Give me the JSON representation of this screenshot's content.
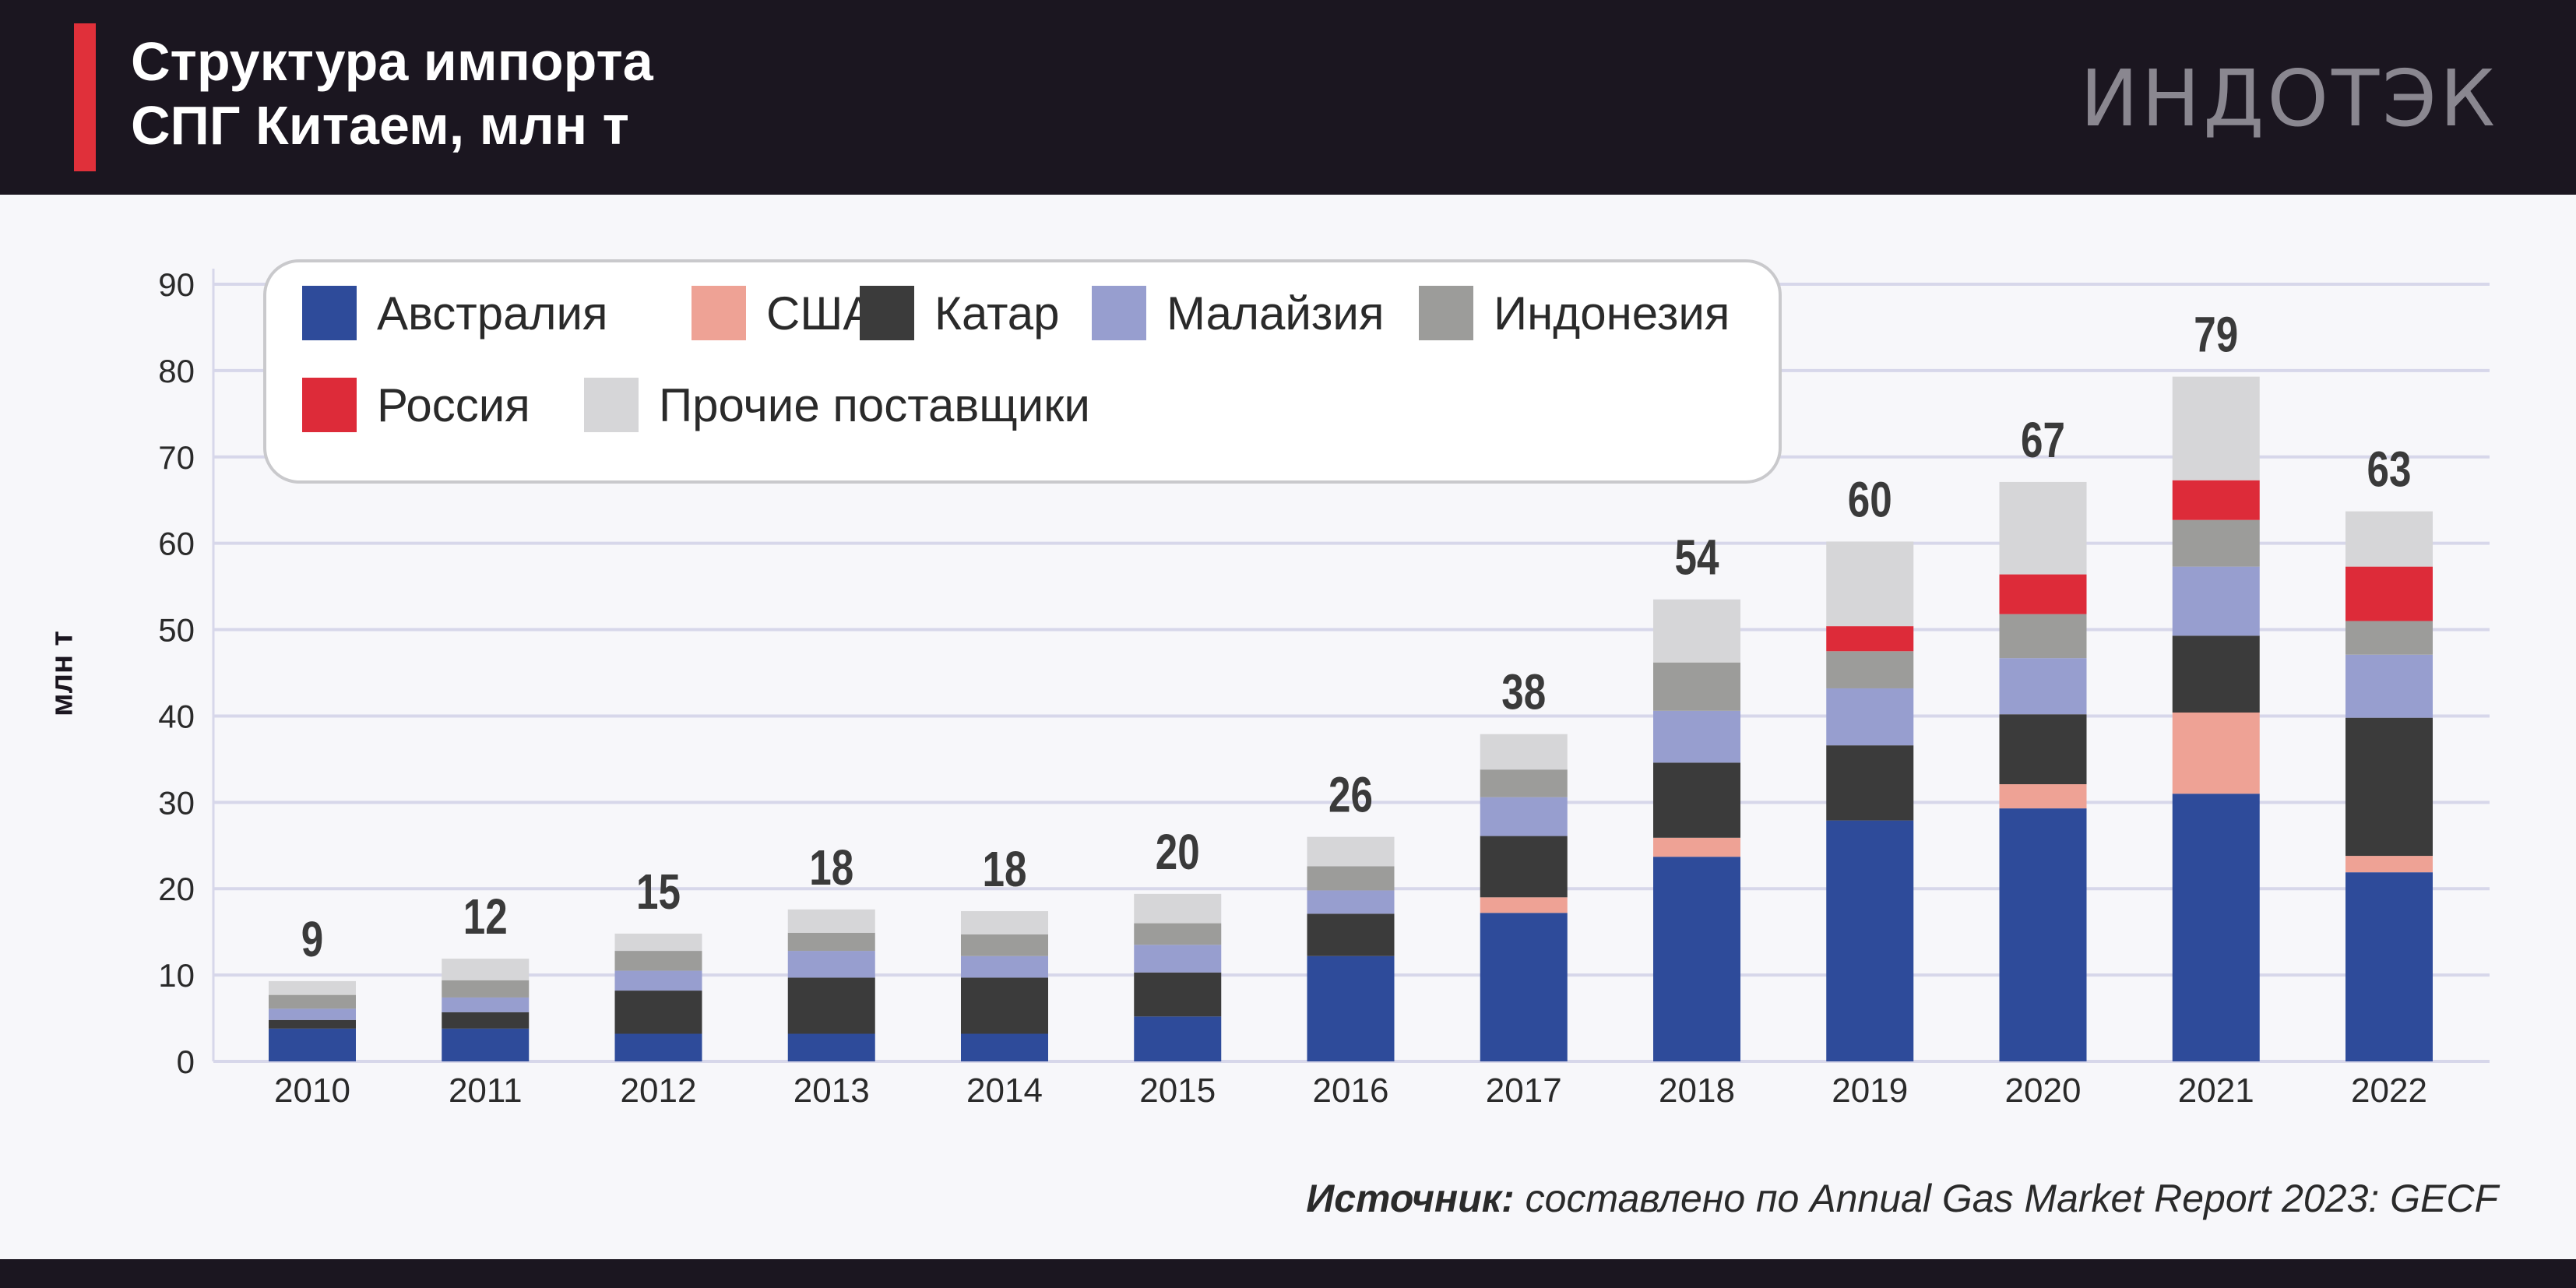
{
  "header": {
    "title_line1": "Структура импорта",
    "title_line2": "СПГ Китаем, млн т",
    "logo": "ИНДОТЭК"
  },
  "source": {
    "label": "Источник:",
    "text": " составлено по Annual Gas Market Report 2023: GECF"
  },
  "chart_data": {
    "type": "bar",
    "stacked": true,
    "title": "Структура импорта СПГ Китаем, млн т",
    "xlabel": "",
    "ylabel": "млн т",
    "ylim": [
      0,
      90
    ],
    "yticks": [
      "0",
      "10",
      "20",
      "30",
      "40",
      "50",
      "60",
      "70",
      "80",
      "90"
    ],
    "grid": true,
    "legend_position": "top-left",
    "categories": [
      "2010",
      "2011",
      "2012",
      "2013",
      "2014",
      "2015",
      "2016",
      "2017",
      "2018",
      "2019",
      "2020",
      "2021",
      "2022"
    ],
    "series": [
      {
        "name": "Австралия",
        "color": "#2e4b9a",
        "values": [
          3.8,
          3.8,
          3.2,
          3.2,
          3.2,
          5.2,
          12.2,
          17.2,
          23.7,
          27.9,
          29.3,
          31.0,
          21.9
        ]
      },
      {
        "name": "США",
        "color": "#eea295",
        "values": [
          0,
          0,
          0,
          0,
          0,
          0,
          0,
          1.8,
          2.2,
          0,
          2.8,
          9.4,
          1.9
        ]
      },
      {
        "name": "Катар",
        "color": "#3b3b3b",
        "values": [
          1.0,
          1.9,
          5.0,
          6.5,
          6.5,
          5.1,
          4.9,
          7.1,
          8.7,
          8.7,
          8.1,
          8.9,
          16.0
        ]
      },
      {
        "name": "Малайзия",
        "color": "#979ecf",
        "values": [
          1.3,
          1.7,
          2.3,
          3.1,
          2.5,
          3.2,
          2.7,
          4.5,
          6.0,
          6.6,
          6.5,
          8.0,
          7.3
        ]
      },
      {
        "name": "Индонезия",
        "color": "#9c9c9a",
        "values": [
          1.6,
          2.0,
          2.3,
          2.1,
          2.5,
          2.5,
          2.8,
          3.2,
          5.6,
          4.3,
          5.1,
          5.4,
          3.9
        ]
      },
      {
        "name": "Россия",
        "color": "#dd2b39",
        "values": [
          0,
          0,
          0,
          0,
          0,
          0,
          0,
          0,
          0,
          2.9,
          4.6,
          4.6,
          6.3
        ]
      },
      {
        "name": "Прочие поставщики",
        "color": "#d6d6d8",
        "values": [
          1.6,
          2.5,
          2.0,
          2.7,
          2.7,
          3.4,
          3.4,
          4.1,
          7.3,
          9.8,
          10.7,
          12.0,
          6.4
        ]
      }
    ],
    "totals": [
      "9",
      "12",
      "15",
      "18",
      "18",
      "20",
      "26",
      "38",
      "54",
      "60",
      "67",
      "79",
      "63"
    ]
  }
}
